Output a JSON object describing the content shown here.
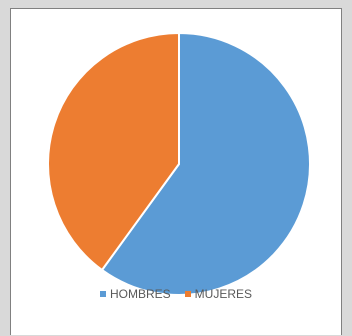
{
  "chart_data": {
    "type": "pie",
    "categories": [
      "HOMBRES",
      "MUJERES"
    ],
    "values": [
      60,
      40
    ],
    "colors": [
      "#5b9bd5",
      "#ed7d31"
    ],
    "start_angle_deg": 0,
    "direction": "clockwise",
    "legend_position": "bottom"
  }
}
